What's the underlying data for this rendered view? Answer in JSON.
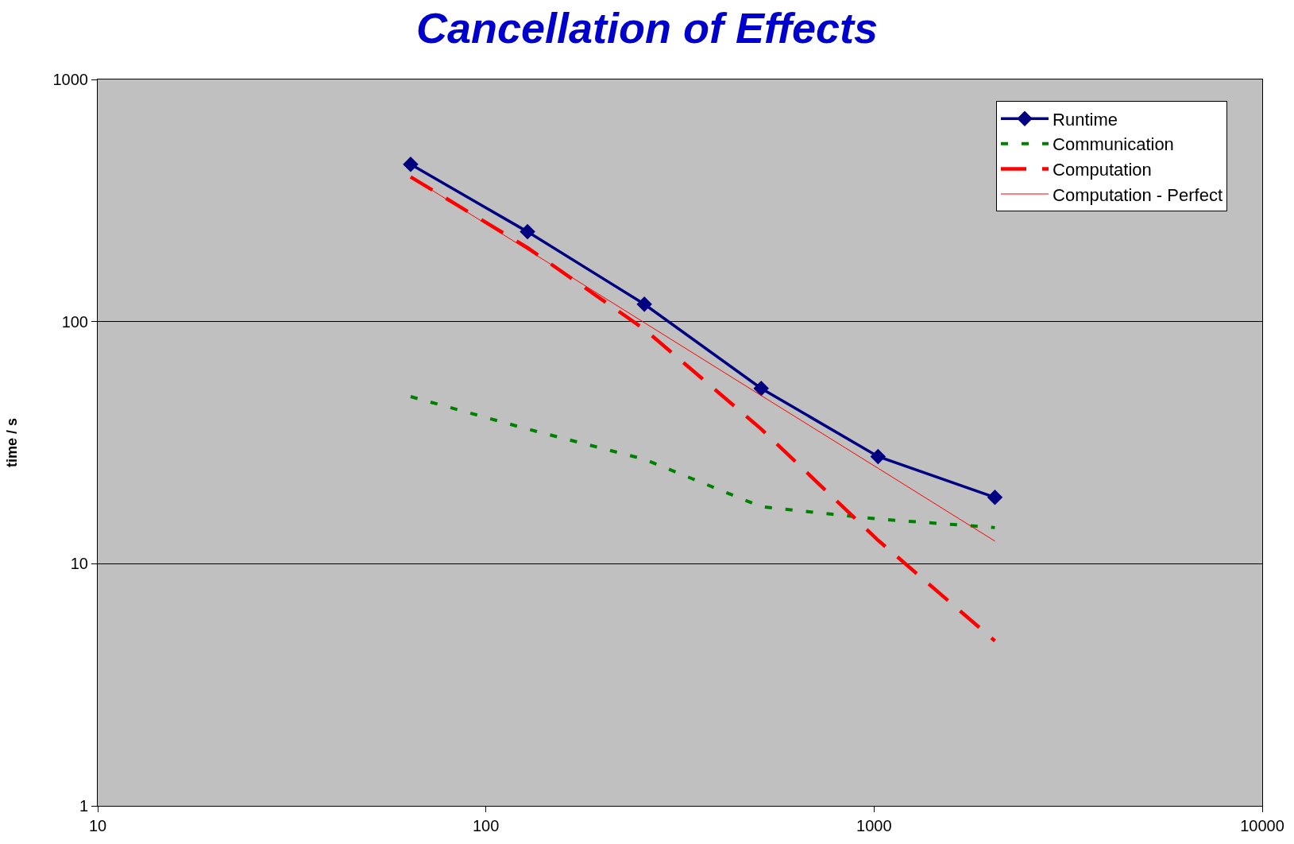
{
  "chart_data": {
    "type": "line",
    "title": "Cancellation of Effects",
    "ylabel": "time / s",
    "x": [
      64,
      128,
      256,
      512,
      1024,
      2048
    ],
    "log": "xy",
    "xlim": [
      10,
      10000
    ],
    "ylim": [
      1,
      1000
    ],
    "xticks": [
      10,
      100,
      1000,
      10000
    ],
    "yticks": [
      1,
      10,
      100,
      1000
    ],
    "grid": "y",
    "legend": "top right",
    "series": [
      {
        "name": "Runtime",
        "color": "#000080",
        "values": [
          446,
          235,
          118,
          53,
          27.7,
          18.8
        ],
        "marker": "diamond",
        "line_style": "solid"
      },
      {
        "name": "Communication",
        "color": "#008000",
        "values": [
          49,
          36,
          27,
          17.2,
          15.3,
          14.1
        ],
        "marker": "none",
        "line_style": "dotted"
      },
      {
        "name": "Computation",
        "color": "#ff0000",
        "values": [
          396,
          202,
          93,
          36,
          12.5,
          4.8
        ],
        "marker": "none",
        "line_style": "dashed"
      },
      {
        "name": "Computation - Perfect",
        "color": "#ff0000",
        "values": [
          396,
          198,
          99,
          49.5,
          24.8,
          12.4
        ],
        "marker": "none",
        "line_style": "solid"
      }
    ]
  }
}
